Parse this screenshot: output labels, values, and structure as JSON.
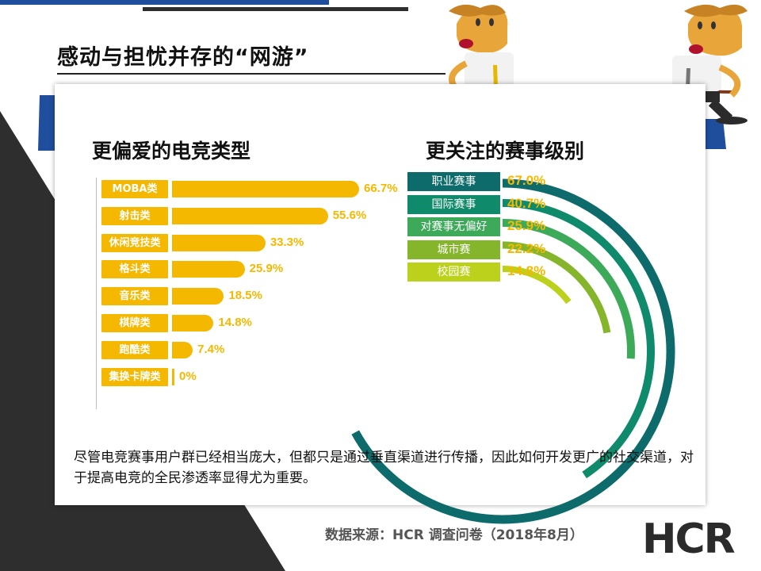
{
  "title": "感动与担忧并存的“网游”",
  "chart_data": [
    {
      "type": "bar",
      "title": "更偏爱的电竞类型",
      "categories": [
        "MOBA类",
        "射击类",
        "休闲竞技类",
        "格斗类",
        "音乐类",
        "棋牌类",
        "跑酷类",
        "集换卡牌类"
      ],
      "values": [
        66.7,
        55.6,
        33.3,
        25.9,
        18.5,
        14.8,
        7.4,
        0
      ],
      "value_labels": [
        "66.7%",
        "55.6%",
        "33.3%",
        "25.9%",
        "18.5%",
        "14.8%",
        "7.4%",
        "0%"
      ],
      "orientation": "horizontal",
      "color": "#f5b800"
    },
    {
      "type": "radial-bar",
      "title": "更关注的赛事级别",
      "categories": [
        "职业赛事",
        "国际赛事",
        "对赛事无偏好",
        "城市赛",
        "校园赛"
      ],
      "values": [
        67.0,
        40.7,
        25.9,
        22.2,
        14.8
      ],
      "value_labels": [
        "67.0%",
        "40.7%",
        "25.9%",
        "22.2%",
        "14.8%"
      ],
      "colors": [
        "#0e6b6b",
        "#0f8a6a",
        "#3daa5a",
        "#84b52a",
        "#bcd11c"
      ]
    }
  ],
  "note": "尽管电竞赛事用户群已经相当庞大，但都只是通过垂直渠道进行传播，因此如何开发更广的社交渠道，对于提高电竞的全民渗透率显得尤为重要。",
  "source": "数据来源：HCR 调查问卷（2018年8月）",
  "logo": "HCR",
  "colors": {
    "accent_yellow": "#f5b800",
    "brand_blue": "#1f4e9c",
    "dark": "#2e2e2e"
  }
}
